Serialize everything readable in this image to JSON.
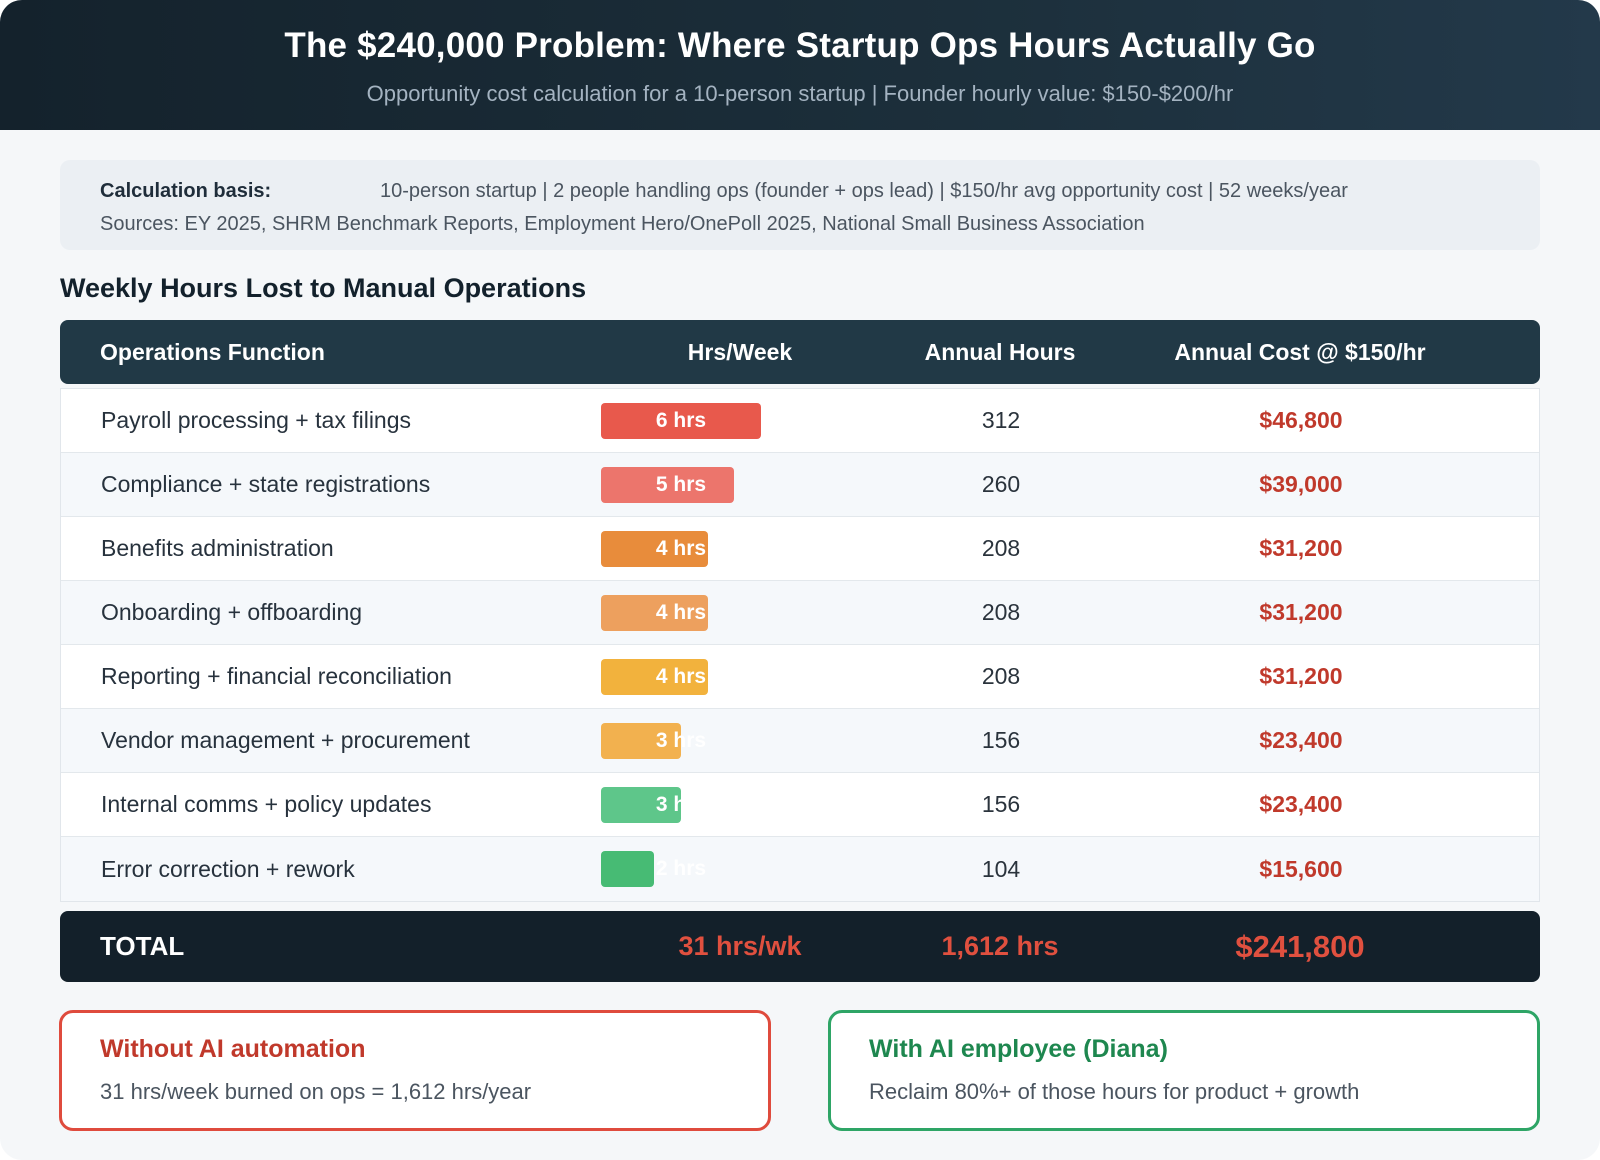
{
  "header": {
    "title": "The $240,000 Problem: Where Startup Ops Hours Actually Go",
    "subtitle": "Opportunity cost calculation for a 10-person startup | Founder hourly value: $150-$200/hr"
  },
  "basis": {
    "label": "Calculation basis:",
    "text": "10-person startup | 2 people handling ops (founder + ops lead) | $150/hr avg opportunity cost | 52 weeks/year",
    "sources": "Sources: EY 2025, SHRM Benchmark Reports, Employment Hero/OnePoll 2025, National Small Business Association"
  },
  "section_title": "Weekly Hours Lost to Manual Operations",
  "chart_data": {
    "type": "table",
    "columns": [
      "Operations Function",
      "Hrs/Week",
      "Annual Hours",
      "Annual Cost @ $150/hr"
    ],
    "max_hours": 6,
    "rows": [
      {
        "function": "Payroll processing + tax filings",
        "hours": 6,
        "hours_label": "6 hrs",
        "annual_hours": "312",
        "annual_cost": "$46,800",
        "color": "#e8594c"
      },
      {
        "function": "Compliance + state registrations",
        "hours": 5,
        "hours_label": "5 hrs",
        "annual_hours": "260",
        "annual_cost": "$39,000",
        "color": "#ec756c"
      },
      {
        "function": "Benefits administration",
        "hours": 4,
        "hours_label": "4 hrs",
        "annual_hours": "208",
        "annual_cost": "$31,200",
        "color": "#e88c3b"
      },
      {
        "function": "Onboarding + offboarding",
        "hours": 4,
        "hours_label": "4 hrs",
        "annual_hours": "208",
        "annual_cost": "$31,200",
        "color": "#eda05e"
      },
      {
        "function": "Reporting + financial reconciliation",
        "hours": 4,
        "hours_label": "4 hrs",
        "annual_hours": "208",
        "annual_cost": "$31,200",
        "color": "#f2b23d"
      },
      {
        "function": "Vendor management + procurement",
        "hours": 3,
        "hours_label": "3 hrs",
        "annual_hours": "156",
        "annual_cost": "$23,400",
        "color": "#f2b14f"
      },
      {
        "function": "Internal comms + policy updates",
        "hours": 3,
        "hours_label": "3 hrs",
        "annual_hours": "156",
        "annual_cost": "$23,400",
        "color": "#5ec68a"
      },
      {
        "function": "Error correction + rework",
        "hours": 2,
        "hours_label": "2 hrs",
        "annual_hours": "104",
        "annual_cost": "$15,600",
        "color": "#47bb74"
      }
    ],
    "total": {
      "label": "TOTAL",
      "hours": "31 hrs/wk",
      "annual_hours": "1,612 hrs",
      "annual_cost": "$241,800"
    }
  },
  "callouts": {
    "without": {
      "title": "Without AI automation",
      "text": "31 hrs/week burned on ops = 1,612 hrs/year"
    },
    "with": {
      "title": "With AI employee (Diana)",
      "text": "Reclaim 80%+ of those hours for product + growth"
    }
  }
}
